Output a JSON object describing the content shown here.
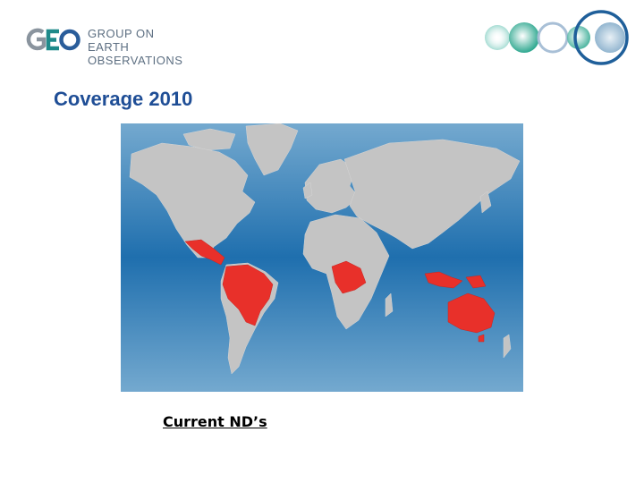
{
  "logo": {
    "line1": "GROUP ON",
    "line2": "EARTH OBSERVATIONS",
    "mark": "geo-logo-icon"
  },
  "decoration": "geo-orbs-icon",
  "title": "Coverage 2010",
  "map": {
    "ocean_color": "#2f7fb8",
    "land_color": "#c4c4c4",
    "highlight_color": "#e8302a",
    "highlighted_regions": [
      "Mexico",
      "Central America",
      "Colombia",
      "Venezuela",
      "Ecuador",
      "Peru",
      "Brazil",
      "Bolivia",
      "Central Africa",
      "Indonesia",
      "Papua New Guinea",
      "Australia"
    ]
  },
  "caption": "Current ND’s"
}
